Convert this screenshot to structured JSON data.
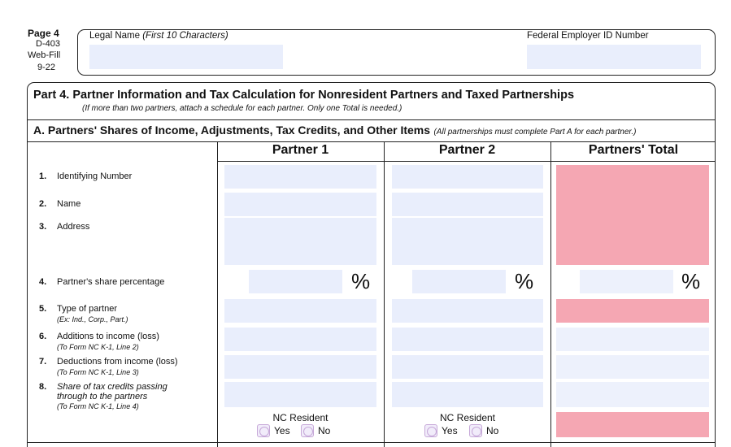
{
  "header": {
    "page_label": "Page 4",
    "form_id": "D-403",
    "web_fill": "Web-Fill",
    "revision": "9-22",
    "legal_name_label": "Legal Name",
    "legal_name_hint": "(First 10 Characters)",
    "fein_label": "Federal Employer ID Number"
  },
  "part": {
    "title": "Part 4.  Partner Information and Tax Calculation for Nonresident Partners and Taxed Partnerships",
    "subtitle": "(If more than two partners, attach a schedule for each partner. Only one Total is needed.)"
  },
  "section_a": {
    "title": "A.  Partners' Shares of Income, Adjustments, Tax Credits, and Other Items",
    "note": "(All partnerships must complete Part A for each partner.)"
  },
  "columns": [
    "Partner 1",
    "Partner 2",
    "Partners' Total"
  ],
  "lines": [
    {
      "num": "1.",
      "label": "Identifying Number",
      "sub": ""
    },
    {
      "num": "2.",
      "label": "Name",
      "sub": ""
    },
    {
      "num": "3.",
      "label": "Address",
      "sub": ""
    },
    {
      "num": "4.",
      "label": "Partner's share percentage",
      "sub": ""
    },
    {
      "num": "5.",
      "label": "Type of partner",
      "sub": "(Ex:  Ind., Corp., Part.)"
    },
    {
      "num": "6.",
      "label": "Additions to income (loss)",
      "sub": "(To Form NC K-1, Line 2)"
    },
    {
      "num": "7.",
      "label": "Deductions from income (loss)",
      "sub": "(To Form NC K-1, Line 3)"
    },
    {
      "num": "8.",
      "label": "Share of tax credits passing through to the partners",
      "sub": "(To Form NC K-1, Line 4)"
    }
  ],
  "percent_sign": "%",
  "nc_resident": {
    "label": "NC Resident",
    "yes": "Yes",
    "no": "No"
  }
}
